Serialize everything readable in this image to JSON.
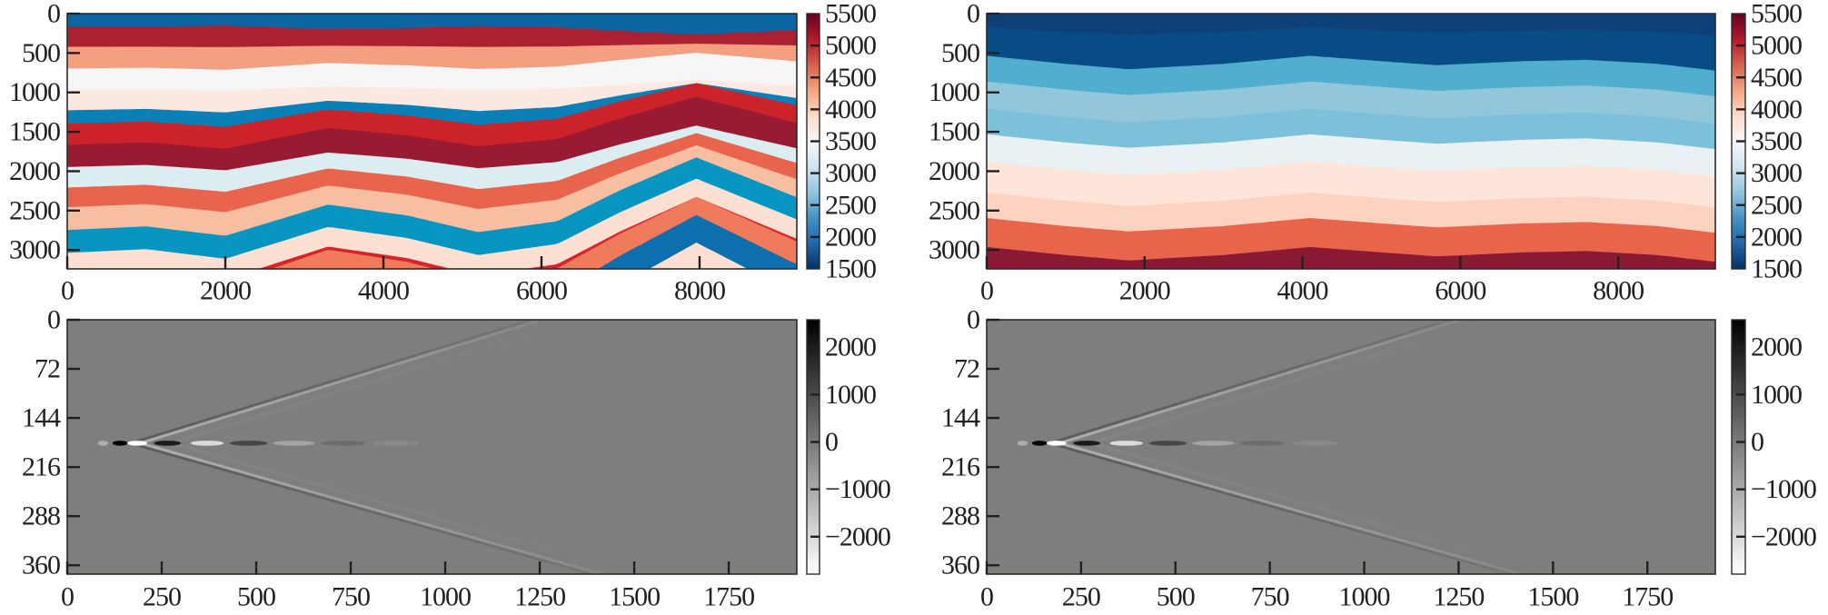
{
  "chart_data": [
    {
      "panel": "velocity-model-true",
      "type": "heatmap",
      "xlim": [
        0,
        9230
      ],
      "ylim": [
        3240,
        0
      ],
      "xaxis": {
        "ticks": [
          0,
          2000,
          4000,
          6000,
          8000
        ],
        "tick_labels": [
          "0",
          "2000",
          "4000",
          "6000",
          "8000"
        ]
      },
      "yaxis": {
        "ticks": [
          0,
          500,
          1000,
          1500,
          2000,
          2500,
          3000
        ],
        "tick_labels": [
          "0",
          "500",
          "1000",
          "1500",
          "2000",
          "2500",
          "3000"
        ]
      },
      "colorbar": {
        "min": 1500,
        "max": 5500,
        "ticks": [
          5500,
          5000,
          4500,
          4000,
          3500,
          3000,
          2500,
          2000,
          1500
        ],
        "tick_labels": [
          "5500",
          "5000",
          "4500",
          "4000",
          "3500",
          "3000",
          "2500",
          "2000",
          "1500"
        ],
        "colors": [
          "#053061",
          "#2166ac",
          "#4393c3",
          "#92c5de",
          "#d1e5f0",
          "#f7f7f7",
          "#fddbc7",
          "#f4a582",
          "#d6604d",
          "#b2182b",
          "#67001f"
        ]
      },
      "fold_shape": {
        "x": [
          0,
          1000,
          2000,
          3300,
          4300,
          5200,
          6200,
          7000,
          7960,
          9230
        ],
        "g": [
          0,
          -0.05,
          0.08,
          -0.35,
          -0.2,
          0.03,
          -0.12,
          -0.55,
          -1,
          -0.45
        ]
      },
      "layers": [
        {
          "value": 2000,
          "color": "#0b66a2",
          "top_depth": 0,
          "fold_amplitude": 0
        },
        {
          "value": 5300,
          "color": "#ab2131",
          "top_depth": 165,
          "fold_amplitude": -105
        },
        {
          "value": 4500,
          "color": "#f4a080",
          "top_depth": 425,
          "fold_amplitude": 40
        },
        {
          "value": 3600,
          "color": "#f6f6f6",
          "top_depth": 700,
          "fold_amplitude": 200
        },
        {
          "value": 3800,
          "color": "#fbe9e1",
          "top_depth": 970,
          "fold_amplitude": 122
        },
        {
          "value": 2400,
          "color": "#0a80b7",
          "top_depth": 1230,
          "fold_amplitude": 345
        },
        {
          "value": 5000,
          "color": "#cc2229",
          "top_depth": 1400,
          "fold_amplitude": 515
        },
        {
          "value": 5400,
          "color": "#981b33",
          "top_depth": 1670,
          "fold_amplitude": 612
        },
        {
          "value": 3300,
          "color": "#dcedf2",
          "top_depth": 1950,
          "fold_amplitude": 526
        },
        {
          "value": 4700,
          "color": "#e9644d",
          "top_depth": 2210,
          "fold_amplitude": 690
        },
        {
          "value": 4300,
          "color": "#f8bea2",
          "top_depth": 2460,
          "fold_amplitude": 786
        },
        {
          "value": 2600,
          "color": "#0795c1",
          "top_depth": 2750,
          "fold_amplitude": 922
        },
        {
          "value": 4000,
          "color": "#fde0d2",
          "top_depth": 3040,
          "fold_amplitude": 942
        },
        {
          "value": 5100,
          "color": "#d7242a",
          "top_depth": 3300,
          "fold_amplitude": 970
        },
        {
          "value": 4600,
          "color": "#ef7b5c",
          "top_depth": 3360,
          "fold_amplitude": 1030
        },
        {
          "value": 2200,
          "color": "#0d6fae",
          "top_depth": 3700,
          "fold_amplitude": 1140
        },
        {
          "value": 4000,
          "color": "#fde0d2",
          "top_depth": 4100,
          "fold_amplitude": 1190
        }
      ]
    },
    {
      "panel": "velocity-model-initial",
      "type": "heatmap",
      "xlim": [
        0,
        9230
      ],
      "ylim": [
        3240,
        0
      ],
      "xaxis": {
        "ticks": [
          0,
          2000,
          4000,
          6000,
          8000
        ],
        "tick_labels": [
          "0",
          "2000",
          "4000",
          "6000",
          "8000"
        ]
      },
      "yaxis": {
        "ticks": [
          0,
          500,
          1000,
          1500,
          2000,
          2500,
          3000
        ],
        "tick_labels": [
          "0",
          "500",
          "1000",
          "1500",
          "2000",
          "2500",
          "3000"
        ]
      },
      "colorbar": {
        "min": 1500,
        "max": 5500,
        "ticks": [
          5500,
          5000,
          4500,
          4000,
          3500,
          3000,
          2500,
          2000,
          1500
        ],
        "tick_labels": [
          "5500",
          "5000",
          "4500",
          "4000",
          "3500",
          "3000",
          "2500",
          "2000",
          "1500"
        ],
        "colors": [
          "#053061",
          "#2166ac",
          "#4393c3",
          "#92c5de",
          "#d1e5f0",
          "#f7f7f7",
          "#fddbc7",
          "#f4a582",
          "#d6604d",
          "#b2182b",
          "#67001f"
        ]
      },
      "fold_shape": {
        "x": [
          0,
          1000,
          1800,
          3000,
          4100,
          5000,
          5700,
          6800,
          7600,
          8500,
          9230
        ],
        "g": [
          0,
          0.6,
          1,
          0.6,
          0,
          0.4,
          0.7,
          0.4,
          0.3,
          0.6,
          1.1
        ]
      },
      "layers": [
        {
          "value": 1700,
          "color": "#0f3f77",
          "top_depth": 0,
          "fold_amplitude": 0
        },
        {
          "value": 1900,
          "color": "#074c84",
          "top_depth": 173,
          "fold_amplitude": 100
        },
        {
          "value": 2700,
          "color": "#52aecf",
          "top_depth": 539,
          "fold_amplitude": 170
        },
        {
          "value": 3000,
          "color": "#92c6db",
          "top_depth": 866,
          "fold_amplitude": 170
        },
        {
          "value": 2900,
          "color": "#7dc0d9",
          "top_depth": 1212,
          "fold_amplitude": 170
        },
        {
          "value": 3400,
          "color": "#e9f1f4",
          "top_depth": 1536,
          "fold_amplitude": 170
        },
        {
          "value": 3900,
          "color": "#fde5d9",
          "top_depth": 1882,
          "fold_amplitude": 170
        },
        {
          "value": 4100,
          "color": "#fbd3c0",
          "top_depth": 2275,
          "fold_amplitude": 170
        },
        {
          "value": 4700,
          "color": "#e8644b",
          "top_depth": 2598,
          "fold_amplitude": 170
        },
        {
          "value": 5400,
          "color": "#8a1933",
          "top_depth": 2966,
          "fold_amplitude": 170
        }
      ]
    },
    {
      "panel": "shot-gather-observed",
      "type": "heatmap",
      "xlim": [
        0,
        1930
      ],
      "ylim": [
        373,
        0
      ],
      "xaxis": {
        "ticks": [
          0,
          250,
          500,
          750,
          1000,
          1250,
          1500,
          1750
        ],
        "tick_labels": [
          "0",
          "250",
          "500",
          "750",
          "1000",
          "1250",
          "1500",
          "1750"
        ]
      },
      "yaxis": {
        "ticks": [
          0,
          72,
          144,
          216,
          288,
          360
        ],
        "tick_labels": [
          "0",
          "72",
          "144",
          "216",
          "288",
          "360"
        ]
      },
      "colorbar": {
        "min": -2790,
        "max": 2580,
        "ticks": [
          2000,
          1000,
          0,
          -1000,
          -2000
        ],
        "tick_labels": [
          "2000",
          "1000",
          "0",
          "−1000",
          "−2000"
        ],
        "colors": [
          "#ffffff",
          "#000000"
        ]
      },
      "background_color": "#7e7e7c",
      "events": {
        "source": {
          "x": 150,
          "y": 181
        },
        "direct_up_end": {
          "x": 1240,
          "y": 0
        },
        "direct_down_end": {
          "x": 1400,
          "y": 373
        }
      }
    },
    {
      "panel": "shot-gather-predicted",
      "type": "heatmap",
      "xlim": [
        0,
        1930
      ],
      "ylim": [
        373,
        0
      ],
      "xaxis": {
        "ticks": [
          0,
          250,
          500,
          750,
          1000,
          1250,
          1500,
          1750
        ],
        "tick_labels": [
          "0",
          "250",
          "500",
          "750",
          "1000",
          "1250",
          "1500",
          "1750"
        ]
      },
      "yaxis": {
        "ticks": [
          0,
          72,
          144,
          216,
          288,
          360
        ],
        "tick_labels": [
          "0",
          "72",
          "144",
          "216",
          "288",
          "360"
        ]
      },
      "colorbar": {
        "min": -2790,
        "max": 2580,
        "ticks": [
          2000,
          1000,
          0,
          -1000,
          -2000
        ],
        "tick_labels": [
          "2000",
          "1000",
          "0",
          "−1000",
          "−2000"
        ],
        "colors": [
          "#ffffff",
          "#000000"
        ]
      },
      "background_color": "#7e7e7c",
      "events": {
        "source": {
          "x": 150,
          "y": 181
        },
        "direct_up_end": {
          "x": 1240,
          "y": 0
        },
        "direct_down_end": {
          "x": 1400,
          "y": 373
        }
      }
    }
  ]
}
